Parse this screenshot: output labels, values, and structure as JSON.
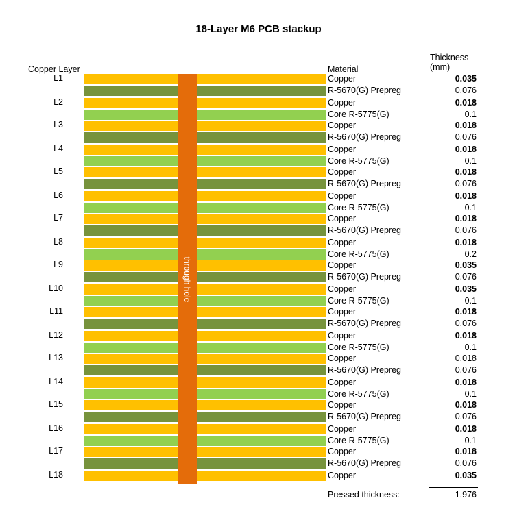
{
  "title": "18-Layer M6 PCB stackup",
  "headers": {
    "copper_layer": "Copper Layer",
    "material": "Material",
    "thickness_line1": "Thickness",
    "thickness_line2": "(mm)"
  },
  "via_label": "through hole",
  "colors": {
    "copper": "#FFC000",
    "prepreg": "#77933C",
    "core": "#92D050",
    "via": "#E46C0A"
  },
  "rows": [
    {
      "type": "copper",
      "layer": "L1",
      "material": "Copper",
      "thickness": "0.035",
      "bold": true
    },
    {
      "type": "prepreg",
      "material": "R-5670(G) Prepreg",
      "thickness": "0.076"
    },
    {
      "type": "copper",
      "layer": "L2",
      "material": "Copper",
      "thickness": "0.018",
      "bold": true
    },
    {
      "type": "core",
      "material": "Core R-5775(G)",
      "thickness": "0.1"
    },
    {
      "type": "copper",
      "layer": "L3",
      "material": "Copper",
      "thickness": "0.018",
      "bold": true
    },
    {
      "type": "prepreg",
      "material": "R-5670(G) Prepreg",
      "thickness": "0.076"
    },
    {
      "type": "copper",
      "layer": "L4",
      "material": "Copper",
      "thickness": "0.018",
      "bold": true
    },
    {
      "type": "core",
      "material": "Core R-5775(G)",
      "thickness": "0.1"
    },
    {
      "type": "copper",
      "layer": "L5",
      "material": "Copper",
      "thickness": "0.018",
      "bold": true
    },
    {
      "type": "prepreg",
      "material": "R-5670(G) Prepreg",
      "thickness": "0.076"
    },
    {
      "type": "copper",
      "layer": "L6",
      "material": "Copper",
      "thickness": "0.018",
      "bold": true
    },
    {
      "type": "core",
      "material": "Core R-5775(G)",
      "thickness": "0.1"
    },
    {
      "type": "copper",
      "layer": "L7",
      "material": "Copper",
      "thickness": "0.018",
      "bold": true
    },
    {
      "type": "prepreg",
      "material": "R-5670(G) Prepreg",
      "thickness": "0.076"
    },
    {
      "type": "copper",
      "layer": "L8",
      "material": "Copper",
      "thickness": "0.018",
      "bold": true
    },
    {
      "type": "core",
      "material": "Core R-5775(G)",
      "thickness": "0.2"
    },
    {
      "type": "copper",
      "layer": "L9",
      "material": "Copper",
      "thickness": "0.035",
      "bold": true
    },
    {
      "type": "prepreg",
      "material": "R-5670(G) Prepreg",
      "thickness": "0.076"
    },
    {
      "type": "copper",
      "layer": "L10",
      "material": "Copper",
      "thickness": "0.035",
      "bold": true
    },
    {
      "type": "core",
      "material": "Core R-5775(G)",
      "thickness": "0.1"
    },
    {
      "type": "copper",
      "layer": "L11",
      "material": "Copper",
      "thickness": "0.018",
      "bold": true
    },
    {
      "type": "prepreg",
      "material": "R-5670(G) Prepreg",
      "thickness": "0.076"
    },
    {
      "type": "copper",
      "layer": "L12",
      "material": "Copper",
      "thickness": "0.018",
      "bold": true
    },
    {
      "type": "core",
      "material": "Core R-5775(G)",
      "thickness": "0.1"
    },
    {
      "type": "copper",
      "layer": "L13",
      "material": "Copper",
      "thickness": "0.018",
      "bold": false
    },
    {
      "type": "prepreg",
      "material": "R-5670(G) Prepreg",
      "thickness": "0.076"
    },
    {
      "type": "copper",
      "layer": "L14",
      "material": "Copper",
      "thickness": "0.018",
      "bold": true
    },
    {
      "type": "core",
      "material": "Core R-5775(G)",
      "thickness": "0.1"
    },
    {
      "type": "copper",
      "layer": "L15",
      "material": "Copper",
      "thickness": "0.018",
      "bold": true
    },
    {
      "type": "prepreg",
      "material": "R-5670(G) Prepreg",
      "thickness": "0.076"
    },
    {
      "type": "copper",
      "layer": "L16",
      "material": "Copper",
      "thickness": "0.018",
      "bold": true
    },
    {
      "type": "core",
      "material": "Core R-5775(G)",
      "thickness": "0.1"
    },
    {
      "type": "copper",
      "layer": "L17",
      "material": "Copper",
      "thickness": "0.018",
      "bold": true
    },
    {
      "type": "prepreg",
      "material": "R-5670(G) Prepreg",
      "thickness": "0.076"
    },
    {
      "type": "copper",
      "layer": "L18",
      "material": "Copper",
      "thickness": "0.035",
      "bold": true
    }
  ],
  "summary": {
    "label": "Pressed thickness:",
    "value": "1.976"
  }
}
